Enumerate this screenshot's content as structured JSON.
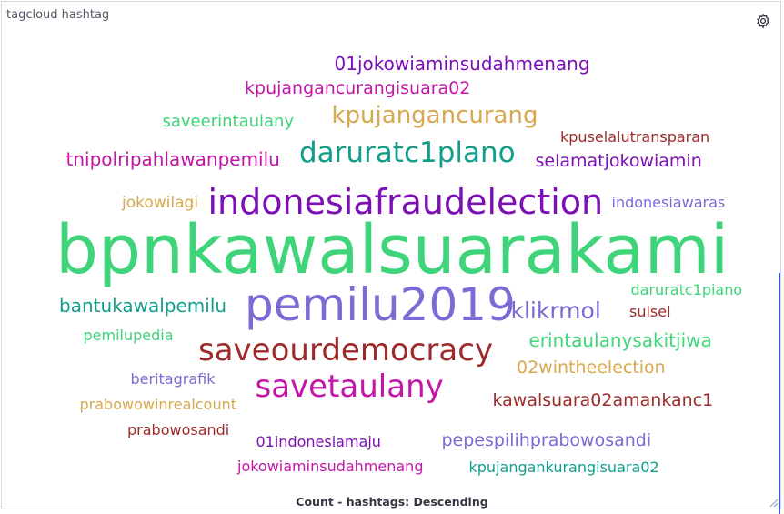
{
  "panel": {
    "title": "tagcloud hashtag",
    "icons": {
      "options": "gear-icon",
      "resize": "resize-handle-icon"
    }
  },
  "chart_data": {
    "type": "tagcloud",
    "caption": "Count - hashtags: Descending",
    "words": [
      {
        "text": "bpnkawalsuarakami",
        "color": "#3fd47a"
      },
      {
        "text": "indonesiafraudelection",
        "color": "#7c10b5"
      },
      {
        "text": "pemilu2019",
        "color": "#7b6bd4"
      },
      {
        "text": "saveourdemocracy",
        "color": "#9e2b2b"
      },
      {
        "text": "savetaulany",
        "color": "#c316a8"
      },
      {
        "text": "daruratc1plano",
        "color": "#139e8c"
      },
      {
        "text": "kpujangancurang",
        "color": "#d7a84e"
      },
      {
        "text": "klikrmol",
        "color": "#7b6bd4"
      },
      {
        "text": "01jokowiaminsudahmenang",
        "color": "#7c10b5"
      },
      {
        "text": "kpujangancurangisuara02",
        "color": "#c316a8"
      },
      {
        "text": "tnipolripahlawanpemilu",
        "color": "#c316a8"
      },
      {
        "text": "selamatjokowiamin",
        "color": "#7c10b5"
      },
      {
        "text": "bantukawalpemilu",
        "color": "#139e8c"
      },
      {
        "text": "erintaulanysakitjiwa",
        "color": "#3fd47a"
      },
      {
        "text": "kawalsuara02amankanc1",
        "color": "#9e2b2b"
      },
      {
        "text": "02wintheelection",
        "color": "#d7a84e"
      },
      {
        "text": "pepespilihprabowosandi",
        "color": "#7b6bd4"
      },
      {
        "text": "saveerintaulany",
        "color": "#3fd47a"
      },
      {
        "text": "kpuselalutransparan",
        "color": "#9e2b2b"
      },
      {
        "text": "jokowilagi",
        "color": "#d7a84e"
      },
      {
        "text": "indonesiawaras",
        "color": "#7b6bd4"
      },
      {
        "text": "daruratc1piano",
        "color": "#3fd47a"
      },
      {
        "text": "sulsel",
        "color": "#9e2b2b"
      },
      {
        "text": "pemilupedia",
        "color": "#3fd47a"
      },
      {
        "text": "beritagrafik",
        "color": "#7b6bd4"
      },
      {
        "text": "prabowowinrealcount",
        "color": "#d7a84e"
      },
      {
        "text": "prabowosandi",
        "color": "#9e2b2b"
      },
      {
        "text": "01indonesiamaju",
        "color": "#7c10b5"
      },
      {
        "text": "jokowiaminsudahmenang",
        "color": "#c316a8"
      },
      {
        "text": "kpujangankurangisuara02",
        "color": "#139e8c"
      }
    ]
  }
}
